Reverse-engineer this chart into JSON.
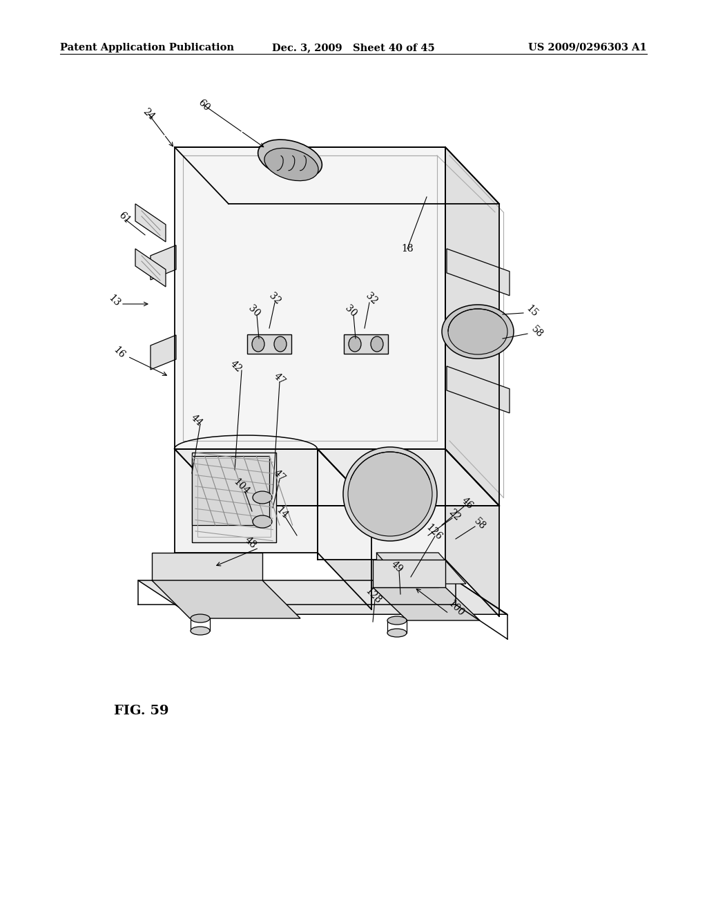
{
  "background_color": "#ffffff",
  "header_left": "Patent Application Publication",
  "header_center": "Dec. 3, 2009   Sheet 40 of 45",
  "header_right": "US 2009/0296303 A1",
  "figure_label": "FIG. 59",
  "header_fontsize": 10.5,
  "fig_label_fontsize": 14,
  "ref_fontsize": 10
}
